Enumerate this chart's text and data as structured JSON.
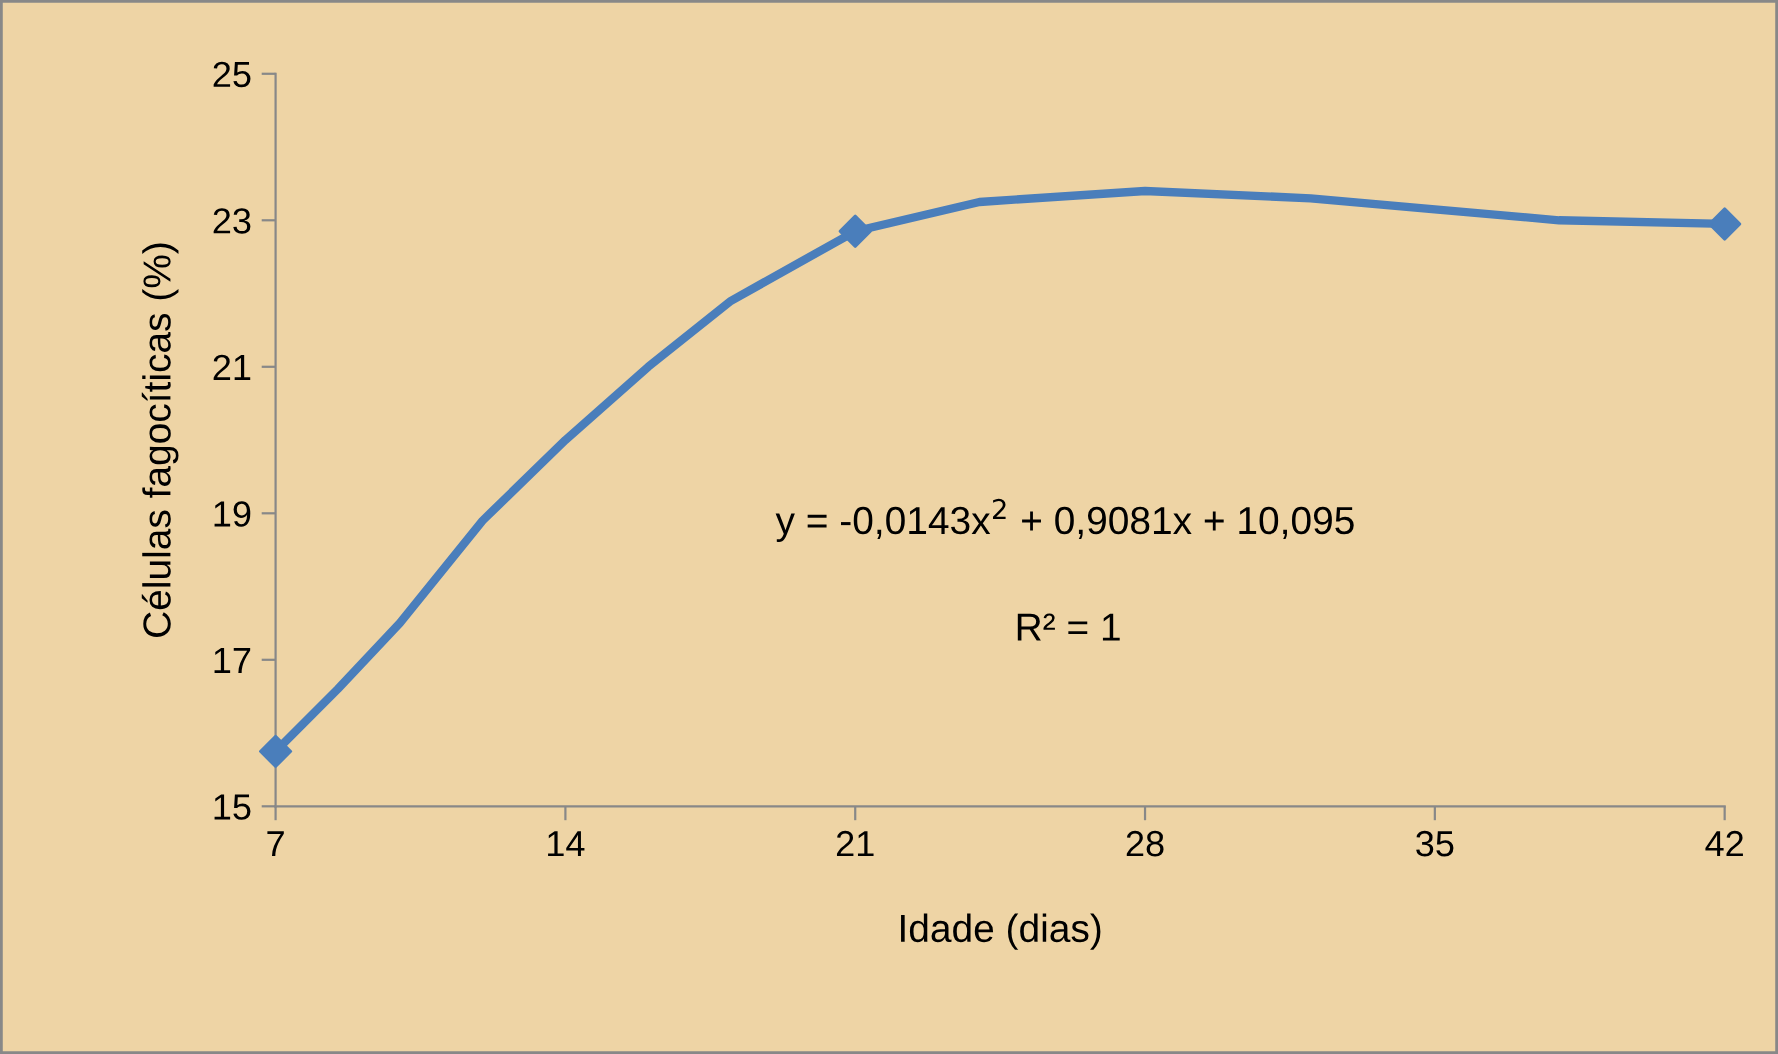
{
  "chart_data": {
    "type": "line",
    "xlabel": "Idade (dias)",
    "ylabel": "Células fagocíticas (%)",
    "xlim": [
      7,
      42
    ],
    "xticks": [
      7,
      14,
      21,
      28,
      35,
      42
    ],
    "ylim": [
      15,
      25
    ],
    "yticks": [
      15,
      17,
      19,
      21,
      23,
      25
    ],
    "grid": false,
    "legend": false,
    "series": [
      {
        "color": "#4a7ebb",
        "marker": "none",
        "x": [
          7,
          8.5,
          10,
          12,
          14,
          16,
          18,
          21,
          24,
          28,
          32,
          35,
          38,
          42
        ],
        "values": [
          15.75,
          16.6,
          17.5,
          18.9,
          20.0,
          21.0,
          21.9,
          22.85,
          23.25,
          23.4,
          23.3,
          23.15,
          23.0,
          22.95
        ]
      },
      {
        "type": "scatter",
        "color": "#4a7ebb",
        "marker": "diamond",
        "x": [
          7,
          21,
          42
        ],
        "values": [
          15.75,
          22.85,
          22.95
        ]
      }
    ],
    "annotations": [
      "y = -0,0143x$^{2}$ + 0,9081x + 10,095",
      "R² = 1"
    ]
  }
}
